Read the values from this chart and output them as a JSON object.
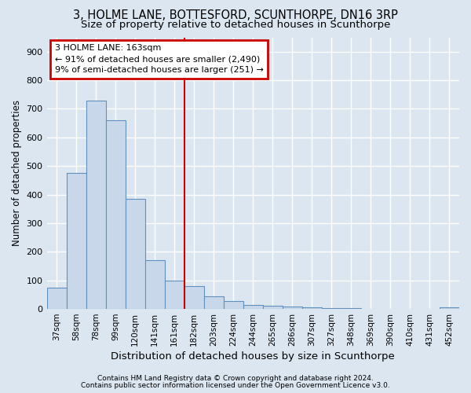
{
  "title1": "3, HOLME LANE, BOTTESFORD, SCUNTHORPE, DN16 3RP",
  "title2": "Size of property relative to detached houses in Scunthorpe",
  "xlabel": "Distribution of detached houses by size in Scunthorpe",
  "ylabel": "Number of detached properties",
  "footer1": "Contains HM Land Registry data © Crown copyright and database right 2024.",
  "footer2": "Contains public sector information licensed under the Open Government Licence v3.0.",
  "categories": [
    "37sqm",
    "58sqm",
    "78sqm",
    "99sqm",
    "120sqm",
    "141sqm",
    "161sqm",
    "182sqm",
    "203sqm",
    "224sqm",
    "244sqm",
    "265sqm",
    "286sqm",
    "307sqm",
    "327sqm",
    "348sqm",
    "369sqm",
    "390sqm",
    "410sqm",
    "431sqm",
    "452sqm"
  ],
  "values": [
    75,
    475,
    730,
    660,
    385,
    170,
    100,
    80,
    43,
    28,
    15,
    10,
    8,
    5,
    4,
    3,
    0,
    0,
    0,
    0,
    7
  ],
  "bar_color": "#c8d8ea",
  "bar_edgecolor": "#6090be",
  "marker_index": 6,
  "marker_label": "3 HOLME LANE: 163sqm",
  "annotation_line1": "← 91% of detached houses are smaller (2,490)",
  "annotation_line2": "9% of semi-detached houses are larger (251) →",
  "marker_color": "#cc0000",
  "ylim_max": 950,
  "yticks": [
    0,
    100,
    200,
    300,
    400,
    500,
    600,
    700,
    800,
    900
  ],
  "bg_color": "#dce6f0",
  "grid_color": "#ffffff",
  "title1_fontsize": 10.5,
  "title2_fontsize": 9.5,
  "ylabel_fontsize": 8.5,
  "xlabel_fontsize": 9.5,
  "tick_fontsize": 8,
  "xtick_fontsize": 7.5,
  "footer_fontsize": 6.5,
  "annot_fontsize": 8.0
}
